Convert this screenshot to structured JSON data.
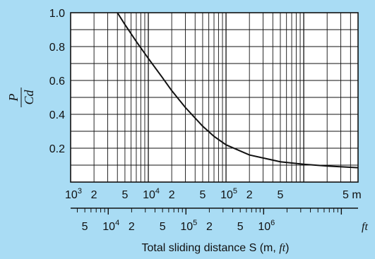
{
  "colors": {
    "background": "#a9dcf4",
    "plot_background": "#ffffff",
    "grid": "#111111",
    "curve": "#111111"
  },
  "chart_data": {
    "type": "line",
    "scale": {
      "x": "log",
      "y": "linear"
    },
    "xlim_m": [
      1000,
      5000000
    ],
    "ylim": [
      0,
      1.0
    ],
    "y_ticks": [
      "1.0",
      "0.8",
      "0.6",
      "0.4",
      "0.2"
    ],
    "ylabel_numerator": "P",
    "ylabel_denominator": "Cd",
    "xlabel_prefix": "Total sliding distance S (m, ",
    "xlabel_ft": "ft",
    "xlabel_suffix": ")",
    "m_axis_labels": [
      {
        "value": 1000,
        "base": "10",
        "exp": "3"
      },
      {
        "value": 2000,
        "base": "2",
        "exp": ""
      },
      {
        "value": 5000,
        "base": "5",
        "exp": ""
      },
      {
        "value": 10000,
        "base": "10",
        "exp": "4"
      },
      {
        "value": 20000,
        "base": "2",
        "exp": ""
      },
      {
        "value": 50000,
        "base": "5",
        "exp": ""
      },
      {
        "value": 100000,
        "base": "10",
        "exp": "5"
      },
      {
        "value": 200000,
        "base": "2",
        "exp": ""
      },
      {
        "value": 500000,
        "base": "5",
        "exp": ""
      }
    ],
    "m_unit": "5 m",
    "ft_axis_labels": [
      {
        "value": 5000,
        "base": "5",
        "exp": ""
      },
      {
        "value": 10000,
        "base": "10",
        "exp": "4"
      },
      {
        "value": 20000,
        "base": "2",
        "exp": ""
      },
      {
        "value": 50000,
        "base": "5",
        "exp": ""
      },
      {
        "value": 100000,
        "base": "10",
        "exp": "5"
      },
      {
        "value": 200000,
        "base": "2",
        "exp": ""
      },
      {
        "value": 500000,
        "base": "5",
        "exp": ""
      },
      {
        "value": 1000000,
        "base": "10",
        "exp": "6"
      }
    ],
    "ft_unit": "ft",
    "series": [
      {
        "x_m": [
          4000,
          5000,
          7000,
          10000,
          15000,
          20000,
          30000,
          50000,
          70000,
          100000,
          200000,
          500000,
          1000000,
          2000000,
          5000000
        ],
        "y": [
          1.0,
          0.93,
          0.83,
          0.73,
          0.62,
          0.54,
          0.44,
          0.33,
          0.27,
          0.22,
          0.16,
          0.12,
          0.105,
          0.095,
          0.085
        ]
      }
    ]
  }
}
